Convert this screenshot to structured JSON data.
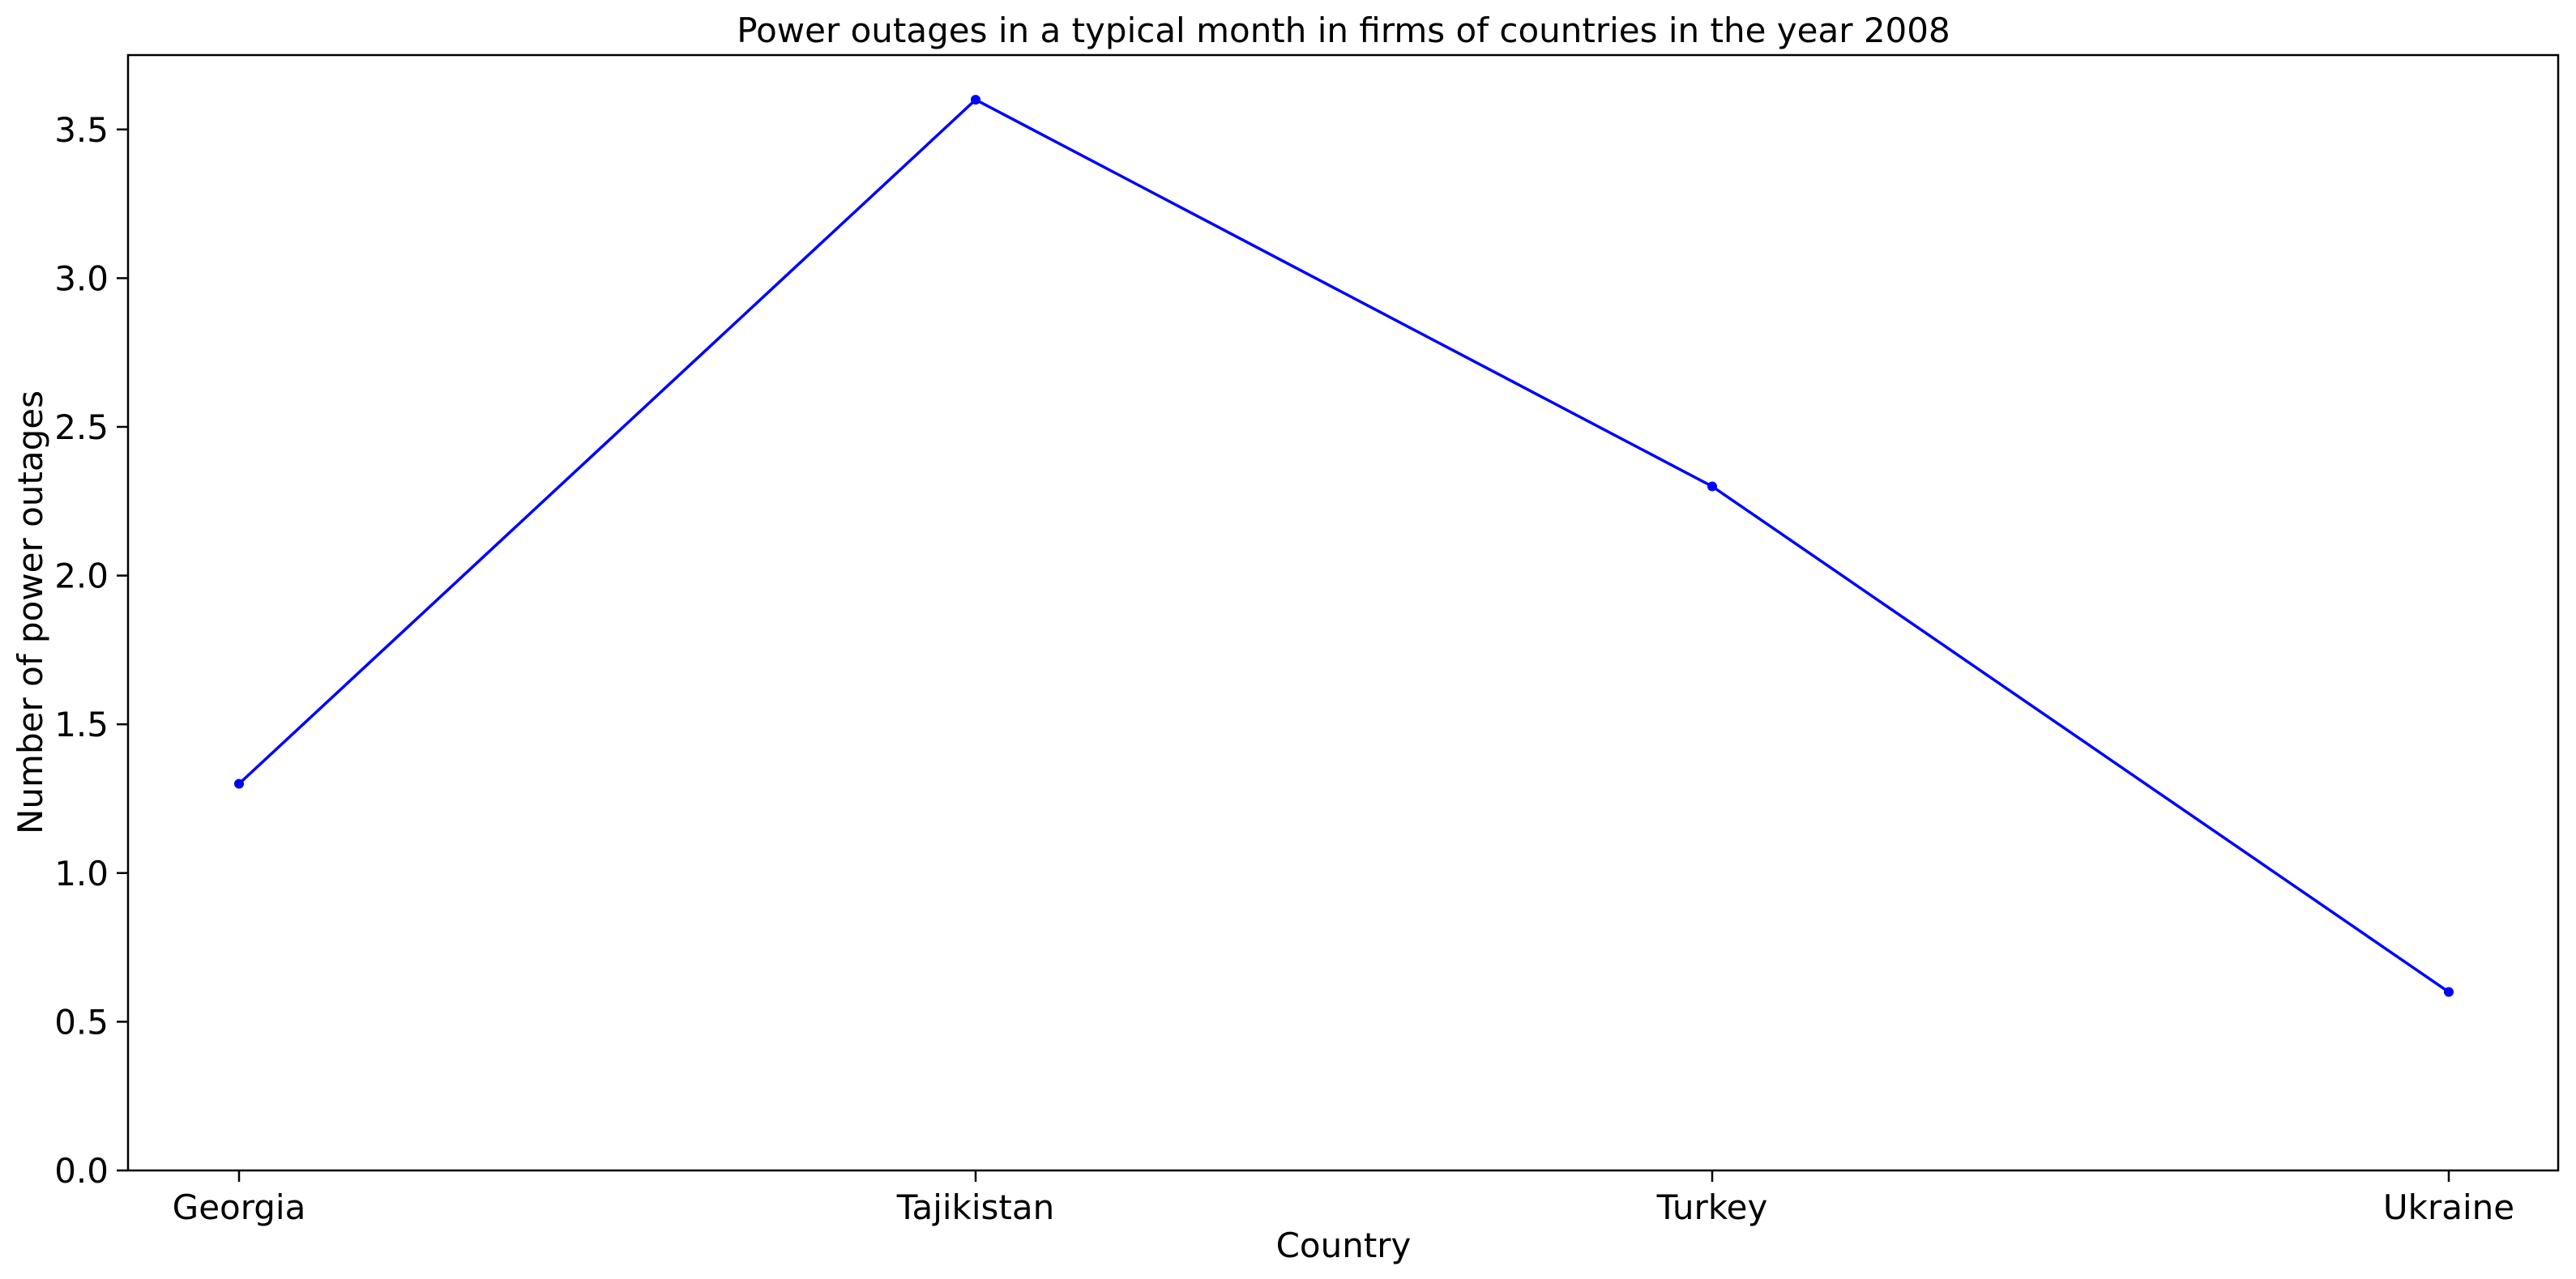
{
  "chart_data": {
    "type": "line",
    "title": "Power outages in a typical month in firms of countries in the year 2008",
    "xlabel": "Country",
    "ylabel": "Number of power outages",
    "categories": [
      "Georgia",
      "Tajikistan",
      "Turkey",
      "Ukraine"
    ],
    "series": [
      {
        "values": [
          1.3,
          3.6,
          2.3,
          0.6
        ],
        "color": "#0000ff"
      }
    ],
    "ylim": [
      0,
      3.75
    ],
    "yticks": [
      "0.0",
      "0.5",
      "1.0",
      "1.5",
      "2.0",
      "2.5",
      "3.0",
      "3.5"
    ],
    "grid": false,
    "legend": "none"
  }
}
